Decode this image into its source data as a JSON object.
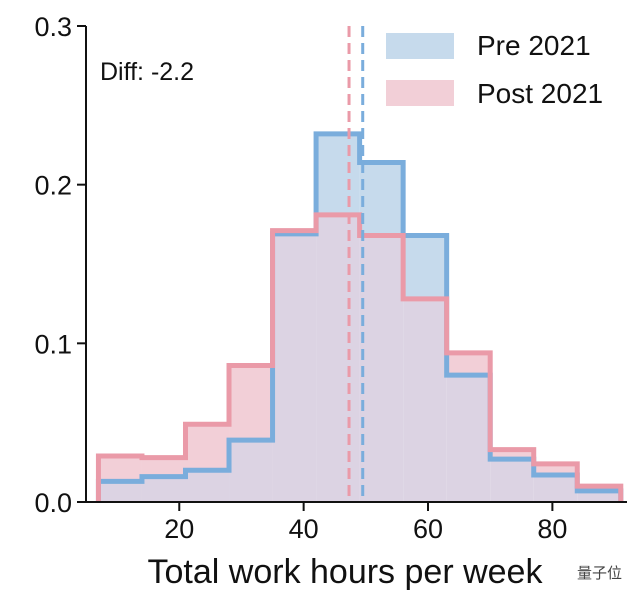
{
  "chart_data": {
    "type": "histogram",
    "xlabel": "Total work hours per week",
    "ylabel": "",
    "xlim": [
      5,
      92
    ],
    "ylim": [
      0,
      0.3
    ],
    "xticks": [
      "20",
      "40",
      "60",
      "80"
    ],
    "xtick_values": [
      20,
      40,
      60,
      80
    ],
    "yticks": [
      "0.0",
      "0.1",
      "0.2",
      "0.3"
    ],
    "ytick_values": [
      0.0,
      0.1,
      0.2,
      0.3
    ],
    "annotation": "Diff: -2.2",
    "legend_position": "top-right",
    "bin_edges": [
      7,
      14,
      21,
      28,
      35,
      42,
      49,
      56,
      63,
      70,
      77,
      84,
      91
    ],
    "series": [
      {
        "name": "Pre 2021",
        "fill": "#c6daec",
        "stroke": "#7aaddc",
        "values": [
          0.013,
          0.016,
          0.02,
          0.039,
          0.169,
          0.232,
          0.214,
          0.168,
          0.08,
          0.027,
          0.017,
          0.007
        ],
        "mean": 49.5
      },
      {
        "name": "Post 2021",
        "fill": "#f2cfd7",
        "stroke": "#ea9aa8",
        "values": [
          0.029,
          0.028,
          0.049,
          0.086,
          0.171,
          0.181,
          0.168,
          0.128,
          0.094,
          0.033,
          0.024,
          0.01
        ],
        "mean": 47.3
      }
    ],
    "overlap_fill": "#dcd3e3"
  },
  "watermark": "量子位"
}
